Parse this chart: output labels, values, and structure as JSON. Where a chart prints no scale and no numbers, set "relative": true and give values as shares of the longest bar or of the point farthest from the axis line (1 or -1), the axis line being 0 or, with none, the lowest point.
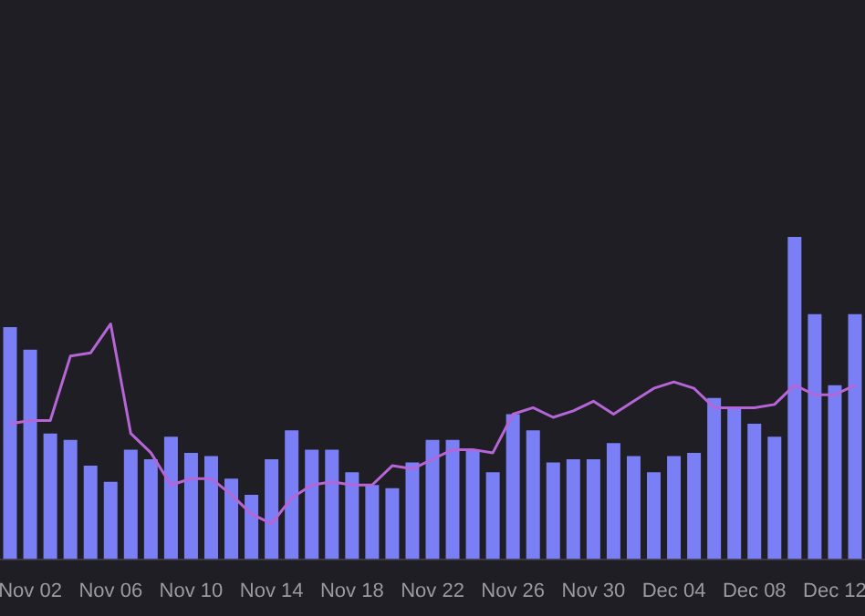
{
  "chart_data": {
    "type": "bar",
    "relative": true,
    "categories": [
      null,
      "Nov 02",
      null,
      null,
      null,
      "Nov 06",
      null,
      null,
      null,
      "Nov 10",
      null,
      null,
      null,
      "Nov 14",
      null,
      null,
      null,
      "Nov 18",
      null,
      null,
      null,
      "Nov 22",
      null,
      null,
      null,
      "Nov 26",
      null,
      null,
      null,
      "Nov 30",
      null,
      null,
      null,
      "Dec 04",
      null,
      null,
      null,
      "Dec 08",
      null,
      null,
      null,
      "Dec 12",
      null
    ],
    "series": [
      {
        "color": "#7b7ff5",
        "values": [
          0.72,
          0.65,
          0.39,
          0.37,
          0.29,
          0.24,
          0.34,
          0.31,
          0.38,
          0.33,
          0.32,
          0.25,
          0.2,
          0.31,
          0.4,
          0.34,
          0.34,
          0.27,
          0.23,
          0.22,
          0.3,
          0.37,
          0.37,
          0.34,
          0.27,
          0.45,
          0.4,
          0.3,
          0.31,
          0.31,
          0.36,
          0.32,
          0.27,
          0.32,
          0.33,
          0.5,
          0.47,
          0.42,
          0.38,
          1,
          0.76,
          0.54,
          0.76
        ]
      },
      {
        "type": "line",
        "color": "#b565d6",
        "values": [
          0.42,
          0.43,
          0.43,
          0.63,
          0.64,
          0.73,
          0.39,
          0.33,
          0.23,
          0.25,
          0.25,
          0.2,
          0.14,
          0.11,
          0.19,
          0.23,
          0.24,
          0.23,
          0.23,
          0.29,
          0.28,
          0.31,
          0.34,
          0.34,
          0.33,
          0.45,
          0.47,
          0.44,
          0.46,
          0.49,
          0.45,
          0.49,
          0.53,
          0.55,
          0.53,
          0.47,
          0.47,
          0.47,
          0.48,
          0.54,
          0.51,
          0.51,
          0.54
        ]
      }
    ]
  }
}
